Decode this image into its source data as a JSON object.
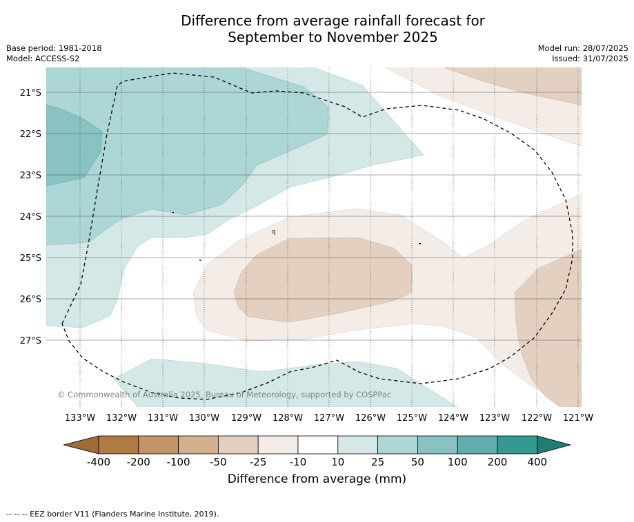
{
  "title": {
    "line1": "Difference from average rainfall forecast for",
    "line2": "September to November 2025"
  },
  "meta": {
    "base_period": "Base period: 1981-2018",
    "model": "Model: ACCESS-S2",
    "model_run": "Model run: 28/07/2025",
    "issued": "Issued: 31/07/2025"
  },
  "map": {
    "lat_ticks": [
      "21°S",
      "22°S",
      "23°S",
      "24°S",
      "25°S",
      "26°S",
      "27°S"
    ],
    "lon_ticks": [
      "133°W",
      "132°W",
      "131°W",
      "130°W",
      "129°W",
      "128°W",
      "127°W",
      "126°W",
      "125°W",
      "124°W",
      "123°W",
      "122°W",
      "121°W"
    ],
    "copyright": "© Commonwealth of Australia 2025, Bureau of Meteorology, supported by COSPPac",
    "fig_marker": "q",
    "colors": {
      "dry_10_25": "#f4ede7",
      "dry_25_50": "#e3d0c0",
      "wet_10_25": "#d4e9e7",
      "wet_25_50": "#add6d6",
      "wet_50_100": "#88c2c2"
    }
  },
  "colorbar": {
    "labels": [
      "-400",
      "-200",
      "-100",
      "-50",
      "-25",
      "-10",
      "10",
      "25",
      "50",
      "100",
      "200",
      "400"
    ],
    "colors": [
      "#9e6a36",
      "#b07a42",
      "#c29466",
      "#d4b090",
      "#e3d0c0",
      "#f4ede7",
      "#ffffff",
      "#d4e9e7",
      "#add6d6",
      "#88c2c2",
      "#5fadac",
      "#35998f",
      "#1f7d73"
    ],
    "label": "Difference from average (mm)"
  },
  "footnote": "--  --  -- EEZ border V11 (Flanders Marine Institute, 2019)."
}
